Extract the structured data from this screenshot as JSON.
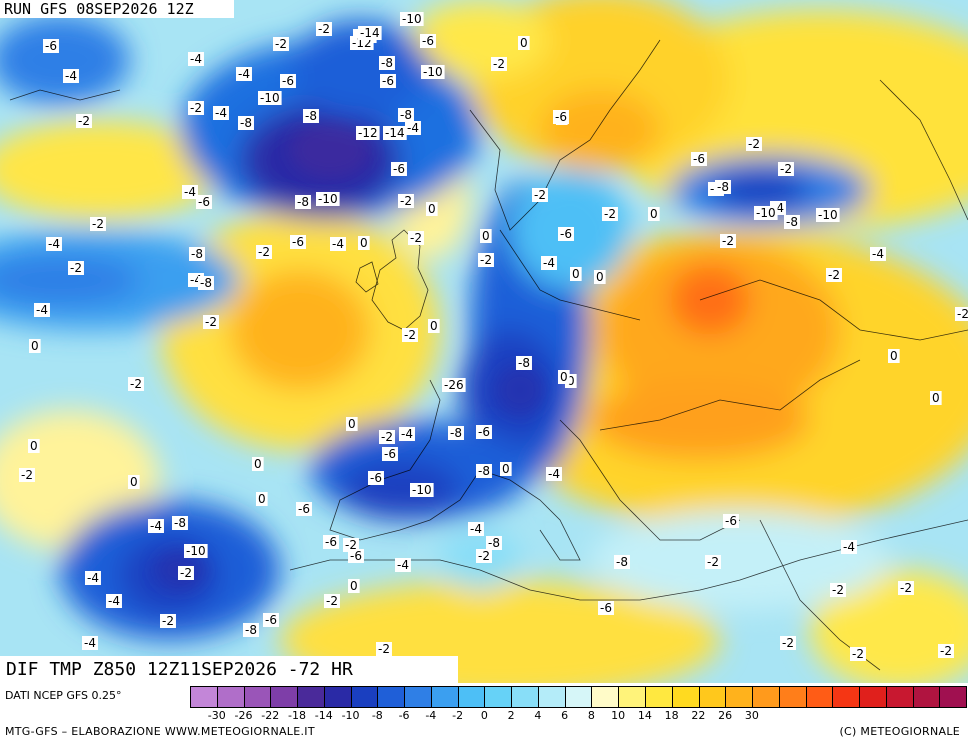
{
  "header": {
    "run_title": "RUN GFS 08SEP2026 12Z"
  },
  "map": {
    "field_title": "DIF TMP Z850 12Z11SEP2026 -72 HR",
    "labels": [
      "-6",
      "-6",
      "-4",
      "-2",
      "-4",
      "-2",
      "-4",
      "-2",
      "-4",
      "-10",
      "-6",
      "-8",
      "-2",
      "-8",
      "-12",
      "-12",
      "-14",
      "-14",
      "-10",
      "-6",
      "-10",
      "-6",
      "-8",
      "-8",
      "-12",
      "-14",
      "-4",
      "-6",
      "-10",
      "-8",
      "-6",
      "-4",
      "-2",
      "-2",
      "0",
      "-4",
      "-2",
      "-2",
      "0",
      "-6",
      "-4",
      "-2",
      "-8",
      "-4",
      "-8",
      "-4",
      "-6",
      "-4",
      "-2",
      "0",
      "-2",
      "0",
      "-2",
      "-2",
      "0",
      "-2",
      "0",
      "-2",
      "0",
      "-2",
      "-6",
      "-6",
      "-2",
      "-4",
      "-2",
      "-8",
      "-10",
      "-8",
      "-10",
      "-4",
      "-2",
      "-26",
      "-8",
      "-6",
      "-2",
      "-4",
      "-8",
      "-6",
      "-10",
      "0",
      "-6",
      "-8",
      "0",
      "0",
      "-2",
      "-4",
      "0",
      "-6",
      "-4",
      "-8",
      "-10",
      "-2",
      "-4",
      "-8",
      "-6",
      "-2",
      "-6",
      "-4",
      "-2",
      "0",
      "-4",
      "-2",
      "-8",
      "-6",
      "-4",
      "-2",
      "-4",
      "-2",
      "-6",
      "-8",
      "-2",
      "-6",
      "-4",
      "-2",
      "-2",
      "-2",
      "-2",
      "-2",
      "0",
      "0",
      "-2",
      "0",
      "0",
      "0",
      "0",
      "0",
      "0",
      "-2",
      "-2",
      "0",
      "-2",
      "-4",
      "-2",
      "-2",
      "-2"
    ]
  },
  "legend": {
    "source": "DATI NCEP GFS 0.25°",
    "colors": [
      "#c386d8",
      "#b06ec9",
      "#9a55b8",
      "#7e3ea8",
      "#4a2a9a",
      "#2a2aa6",
      "#1a3fc0",
      "#1f5fd8",
      "#2f7fe6",
      "#3b9ff0",
      "#4dbff6",
      "#66d2f7",
      "#88def8",
      "#b4ecf9",
      "#d6f6f8",
      "#fffbc8",
      "#fff37a",
      "#ffe840",
      "#ffda20",
      "#ffc81c",
      "#ffb21c",
      "#ff9a1c",
      "#ff7e1a",
      "#ff5c16",
      "#f53614",
      "#e0201c",
      "#c81830",
      "#b01440",
      "#a01050"
    ],
    "tick_labels": [
      "-30",
      "-26",
      "-22",
      "-18",
      "-14",
      "-10",
      "-8",
      "-6",
      "-4",
      "-2",
      "0",
      "2",
      "4",
      "6",
      "8",
      "10",
      "14",
      "18",
      "22",
      "26",
      "30"
    ],
    "tick_indices": [
      1,
      2,
      3,
      4,
      5,
      6,
      7,
      8,
      9,
      10,
      11,
      12,
      13,
      14,
      15,
      16,
      17,
      18,
      19,
      20,
      21
    ]
  },
  "footer": {
    "credit_left": "MTG-GFS – ELABORAZIONE WWW.METEOGIORNALE.IT",
    "credit_right": "(C) METEOGIORNALE"
  }
}
